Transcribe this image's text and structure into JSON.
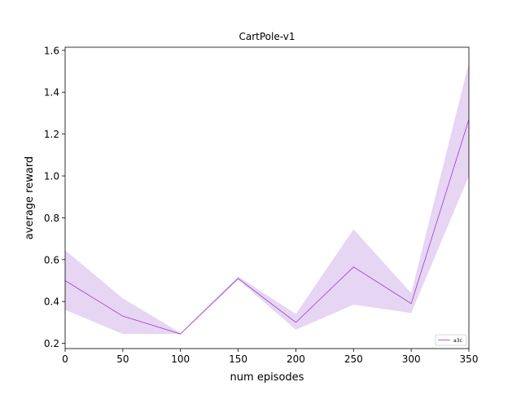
{
  "chart_data": {
    "type": "line",
    "title": "CartPole-v1",
    "xlabel": "num episodes",
    "ylabel": "average reward",
    "xlim": [
      0,
      350
    ],
    "ylim": [
      0.175,
      1.615
    ],
    "xticks": [
      0,
      50,
      100,
      150,
      200,
      250,
      300,
      350
    ],
    "yticks": [
      0.2,
      0.4,
      0.6,
      0.8,
      1.0,
      1.2,
      1.4,
      1.6
    ],
    "xtick_labels": [
      "0",
      "50",
      "100",
      "150",
      "200",
      "250",
      "300",
      "350"
    ],
    "ytick_labels": [
      "0.2",
      "0.4",
      "0.6",
      "0.8",
      "1.0",
      "1.2",
      "1.4",
      "1.6"
    ],
    "grid": false,
    "legend_position": "lower-right",
    "series": [
      {
        "name": "a3c",
        "color": "#9b3fc4",
        "band_color": "#e6d5f3",
        "x": [
          0,
          50,
          100,
          150,
          200,
          250,
          300,
          350
        ],
        "y": [
          0.5,
          0.33,
          0.245,
          0.51,
          0.3,
          0.565,
          0.39,
          1.27
        ],
        "y_lower": [
          0.36,
          0.245,
          0.245,
          0.505,
          0.265,
          0.385,
          0.345,
          1.0
        ],
        "y_upper": [
          0.645,
          0.415,
          0.25,
          0.52,
          0.34,
          0.745,
          0.44,
          1.54
        ]
      }
    ]
  }
}
